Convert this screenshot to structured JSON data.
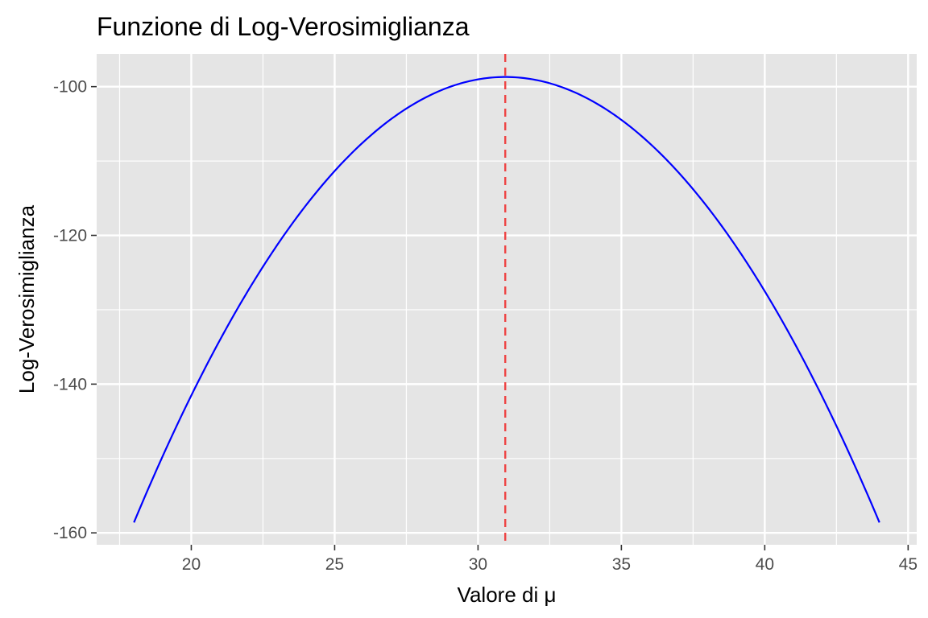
{
  "chart_data": {
    "type": "line",
    "title": "Funzione di Log-Verosimiglianza",
    "xlabel": "Valore di μ",
    "ylabel": "Log-Verosimiglianza",
    "xlim": [
      16.7,
      45.3
    ],
    "ylim": [
      -161.6,
      -95.6
    ],
    "x_ticks": [
      20,
      25,
      30,
      35,
      40,
      45
    ],
    "x_tick_labels": [
      "20",
      "25",
      "30",
      "35",
      "40",
      "45"
    ],
    "y_ticks": [
      -160,
      -140,
      -120,
      -100
    ],
    "y_tick_labels": [
      "-160",
      "-140",
      "-120",
      "-100"
    ],
    "grid": true,
    "series": [
      {
        "color": "#0000ff",
        "peak": {
          "x": 30.95,
          "y": -98.7
        },
        "x": [
          18,
          19,
          20,
          21,
          22,
          23,
          24,
          25,
          26,
          27,
          28,
          29,
          30,
          30.95,
          32,
          33,
          34,
          35,
          36,
          37,
          38,
          39,
          40,
          41,
          42,
          43,
          44
        ],
        "y": [
          -158.6,
          -149.4,
          -140.8,
          -133.0,
          -125.8,
          -119.3,
          -113.5,
          -108.4,
          -104.0,
          -103.0,
          -100.2,
          -99.4,
          -98.9,
          -98.7,
          -99.2,
          -100.1,
          -101.6,
          -104.3,
          -107.7,
          -111.8,
          -116.5,
          -121.9,
          -128.0,
          -134.8,
          -142.2,
          -150.1,
          -158.6
        ]
      }
    ],
    "reference_line": {
      "x": 30.95,
      "color": "#ee4444",
      "style": "dashed"
    }
  }
}
